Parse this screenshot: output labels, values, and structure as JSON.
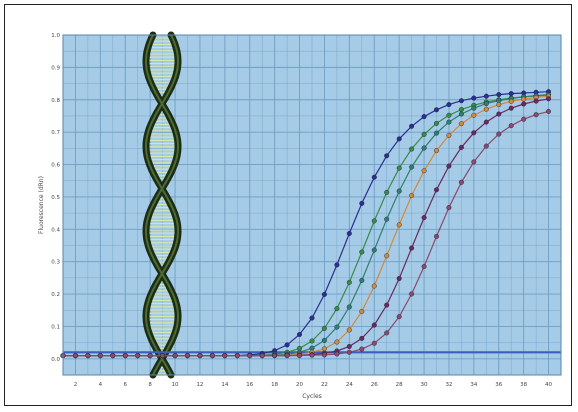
{
  "chart_data": {
    "type": "line",
    "title": "",
    "xlabel": "Cycles",
    "ylabel": "Fluorescence (dRn)",
    "xlim": [
      1,
      41
    ],
    "ylim": [
      -0.05,
      1.0
    ],
    "x_ticks": [
      2,
      4,
      6,
      8,
      10,
      12,
      14,
      16,
      18,
      20,
      22,
      24,
      26,
      28,
      30,
      32,
      34,
      36,
      38,
      40
    ],
    "y_ticks": [
      0.0,
      0.1,
      0.2,
      0.3,
      0.4,
      0.5,
      0.6,
      0.7,
      0.8,
      0.9,
      1.0
    ],
    "x_tick_labels": [
      "2",
      "4",
      "6",
      "8",
      "10",
      "12",
      "14",
      "16",
      "18",
      "20",
      "22",
      "24",
      "26",
      "28",
      "30",
      "32",
      "34",
      "36",
      "38",
      "40"
    ],
    "y_tick_labels": [
      "0.0",
      "0.1",
      "0.2",
      "0.3",
      "0.4",
      "0.5",
      "0.6",
      "0.7",
      "0.8",
      "0.9",
      "1.0"
    ],
    "grid": true,
    "legend": "none",
    "threshold": 0.02,
    "x": [
      1,
      2,
      3,
      4,
      5,
      6,
      7,
      8,
      9,
      10,
      11,
      12,
      13,
      14,
      15,
      16,
      17,
      18,
      19,
      20,
      21,
      22,
      23,
      24,
      25,
      26,
      27,
      28,
      29,
      30,
      31,
      32,
      33,
      34,
      35,
      36,
      37,
      38,
      39,
      40
    ],
    "series": [
      {
        "color": "#2b2f8f",
        "values": [
          0.01,
          0.01,
          0.01,
          0.01,
          0.01,
          0.01,
          0.01,
          0.01,
          0.01,
          0.01,
          0.01,
          0.01,
          0.01,
          0.01,
          0.01,
          0.012,
          0.016,
          0.025,
          0.043,
          0.075,
          0.126,
          0.199,
          0.29,
          0.387,
          0.48,
          0.561,
          0.627,
          0.679,
          0.718,
          0.748,
          0.769,
          0.785,
          0.797,
          0.805,
          0.811,
          0.816,
          0.819,
          0.821,
          0.823,
          0.825
        ]
      },
      {
        "color": "#3a8a4a",
        "values": [
          0.01,
          0.01,
          0.01,
          0.01,
          0.01,
          0.01,
          0.01,
          0.01,
          0.01,
          0.01,
          0.01,
          0.01,
          0.01,
          0.01,
          0.01,
          0.01,
          0.011,
          0.014,
          0.02,
          0.032,
          0.055,
          0.094,
          0.155,
          0.236,
          0.33,
          0.426,
          0.514,
          0.589,
          0.648,
          0.693,
          0.727,
          0.752,
          0.77,
          0.783,
          0.793,
          0.8,
          0.805,
          0.809,
          0.812,
          0.814
        ]
      },
      {
        "color": "#2f7f6f",
        "values": [
          0.01,
          0.01,
          0.01,
          0.01,
          0.01,
          0.01,
          0.01,
          0.01,
          0.01,
          0.01,
          0.01,
          0.01,
          0.01,
          0.01,
          0.01,
          0.01,
          0.01,
          0.011,
          0.014,
          0.02,
          0.033,
          0.057,
          0.098,
          0.16,
          0.242,
          0.336,
          0.431,
          0.518,
          0.592,
          0.651,
          0.697,
          0.731,
          0.756,
          0.774,
          0.788,
          0.797,
          0.804,
          0.809,
          0.813,
          0.816
        ]
      },
      {
        "color": "#d08a3a",
        "values": [
          0.01,
          0.01,
          0.01,
          0.01,
          0.01,
          0.01,
          0.01,
          0.01,
          0.01,
          0.01,
          0.01,
          0.01,
          0.01,
          0.01,
          0.01,
          0.01,
          0.01,
          0.01,
          0.011,
          0.014,
          0.02,
          0.031,
          0.052,
          0.089,
          0.146,
          0.225,
          0.318,
          0.414,
          0.504,
          0.581,
          0.643,
          0.69,
          0.726,
          0.752,
          0.771,
          0.785,
          0.795,
          0.802,
          0.807,
          0.811
        ]
      },
      {
        "color": "#6a2a5e",
        "values": [
          0.01,
          0.01,
          0.01,
          0.01,
          0.01,
          0.01,
          0.01,
          0.01,
          0.01,
          0.01,
          0.01,
          0.01,
          0.01,
          0.01,
          0.01,
          0.01,
          0.01,
          0.01,
          0.01,
          0.011,
          0.013,
          0.017,
          0.024,
          0.038,
          0.063,
          0.104,
          0.166,
          0.248,
          0.342,
          0.436,
          0.522,
          0.595,
          0.653,
          0.698,
          0.731,
          0.756,
          0.774,
          0.787,
          0.796,
          0.803
        ]
      },
      {
        "color": "#8a4a6a",
        "values": [
          0.01,
          0.01,
          0.01,
          0.01,
          0.01,
          0.01,
          0.01,
          0.01,
          0.01,
          0.01,
          0.01,
          0.01,
          0.01,
          0.01,
          0.01,
          0.01,
          0.01,
          0.01,
          0.01,
          0.01,
          0.011,
          0.012,
          0.015,
          0.02,
          0.03,
          0.048,
          0.08,
          0.13,
          0.2,
          0.285,
          0.378,
          0.467,
          0.545,
          0.608,
          0.657,
          0.694,
          0.72,
          0.74,
          0.754,
          0.764
        ]
      }
    ]
  },
  "colors": {
    "plot_bg": "#a6cbe6",
    "grid": "#6d9fc6",
    "threshold": "#3a5fbf",
    "helix": "#1b2e14",
    "helix_rungs": "#d8e7a8"
  }
}
